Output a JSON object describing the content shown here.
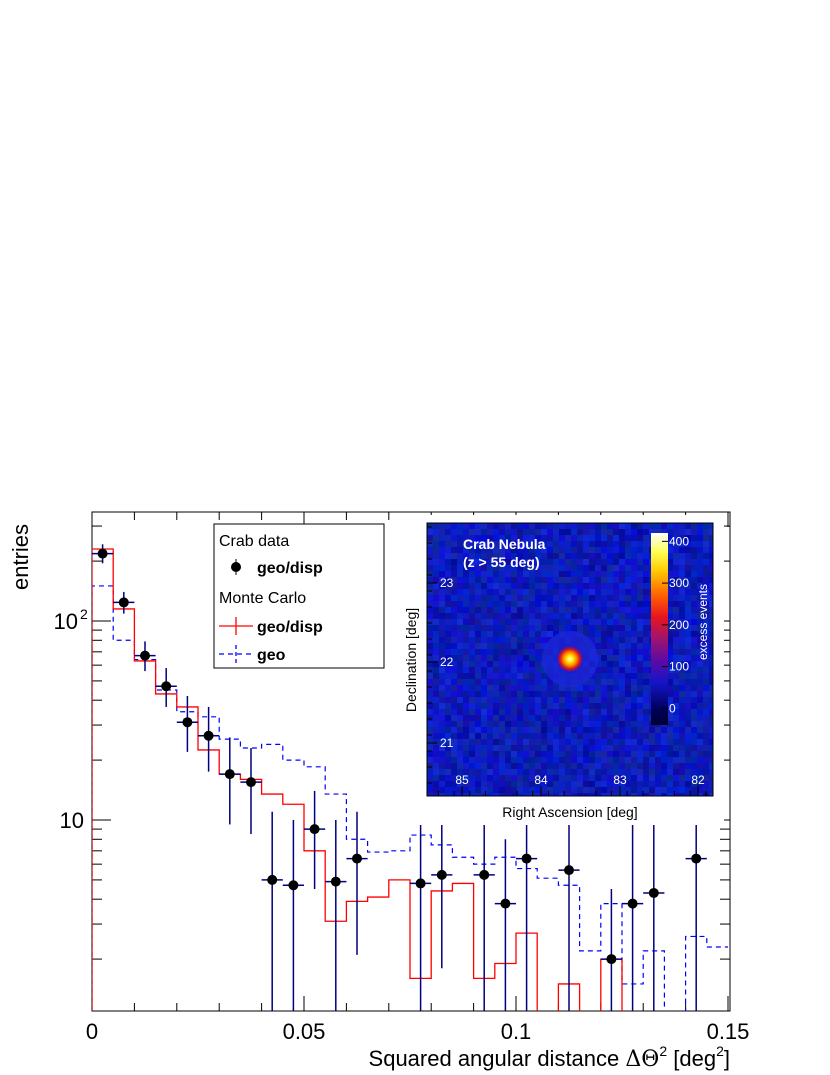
{
  "chart_data": [
    {
      "type": "histogram",
      "xlabel": "Squared angular distance",
      "xlabel_symbol": "ΔΘ",
      "xlabel_sup": "2",
      "xlabel_unit_pre": "[deg",
      "xlabel_unit_sup": "2",
      "xlabel_unit_post": "]",
      "ylabel": "entries",
      "xlim": [
        0,
        0.15
      ],
      "ylim": [
        1.08,
        350
      ],
      "yscale": "log",
      "x_ticks": [
        {
          "value": 0,
          "label": "0"
        },
        {
          "value": 0.05,
          "label": "0.05"
        },
        {
          "value": 0.1,
          "label": "0.1"
        },
        {
          "value": 0.15,
          "label": "0.15"
        }
      ],
      "y_ticks": [
        {
          "value": 10,
          "label": "10",
          "sup": ""
        },
        {
          "value": 100,
          "label": "10",
          "sup": "2"
        }
      ],
      "legend": {
        "placement": "top-center",
        "header_data": "Crab data",
        "header_mc": "Monte Carlo",
        "entries": [
          {
            "label": "geo/disp",
            "group": "data"
          },
          {
            "label": "geo/disp",
            "group": "mc"
          },
          {
            "label": "geo",
            "group": "mc"
          }
        ]
      },
      "bin_width": 0.005,
      "series": [
        {
          "name": "geo/disp",
          "group": "Crab data",
          "style": "points",
          "color": "#000000",
          "errcolor": "#000080",
          "points": [
            {
              "x": 0.0025,
              "y": 218,
              "lo": 195,
              "hi": 243
            },
            {
              "x": 0.0075,
              "y": 124,
              "lo": 109,
              "hi": 140
            },
            {
              "x": 0.0125,
              "y": 67,
              "lo": 56,
              "hi": 79
            },
            {
              "x": 0.0175,
              "y": 47,
              "lo": 37,
              "hi": 58
            },
            {
              "x": 0.0225,
              "y": 31,
              "lo": 22,
              "hi": 42
            },
            {
              "x": 0.0275,
              "y": 26.5,
              "lo": 17.5,
              "hi": 37
            },
            {
              "x": 0.0325,
              "y": 17,
              "lo": 9.5,
              "hi": 26
            },
            {
              "x": 0.0375,
              "y": 15.5,
              "lo": 8.5,
              "hi": 23
            },
            {
              "x": 0.0425,
              "y": 5,
              "lo": 1.0,
              "hi": 11
            },
            {
              "x": 0.0475,
              "y": 4.7,
              "lo": 1.0,
              "hi": 10
            },
            {
              "x": 0.0525,
              "y": 9,
              "lo": 4.5,
              "hi": 14
            },
            {
              "x": 0.0575,
              "y": 4.9,
              "lo": 1.0,
              "hi": 10
            },
            {
              "x": 0.0625,
              "y": 6.4,
              "lo": 2.1,
              "hi": 11
            },
            {
              "x": 0.0775,
              "y": 4.8,
              "lo": 1.0,
              "hi": 10
            },
            {
              "x": 0.0825,
              "y": 5.3,
              "lo": 1.8,
              "hi": 10
            },
            {
              "x": 0.0925,
              "y": 5.3,
              "lo": 1.0,
              "hi": 10
            },
            {
              "x": 0.0975,
              "y": 3.8,
              "lo": 1.0,
              "hi": 8
            },
            {
              "x": 0.1025,
              "y": 6.4,
              "lo": 1.0,
              "hi": 11
            },
            {
              "x": 0.1125,
              "y": 5.6,
              "lo": 1.0,
              "hi": 10
            },
            {
              "x": 0.1225,
              "y": 2.0,
              "lo": 1.0,
              "hi": 4.5
            },
            {
              "x": 0.1275,
              "y": 3.8,
              "lo": 1.0,
              "hi": 10
            },
            {
              "x": 0.1325,
              "y": 4.3,
              "lo": 1.0,
              "hi": 10
            },
            {
              "x": 0.1425,
              "y": 6.4,
              "lo": 1.0,
              "hi": 11
            }
          ]
        },
        {
          "name": "geo/disp",
          "group": "Monte Carlo",
          "style": "step",
          "color": "#ff0000",
          "values": [
            230,
            115,
            63,
            43,
            37,
            22.5,
            17,
            16,
            13.5,
            12,
            7,
            3.1,
            3.9,
            4.1,
            5,
            1.6,
            4.4,
            4.8,
            1.6,
            1.9,
            2.7,
            1,
            1.5,
            1,
            2,
            1,
            1,
            1,
            1,
            1
          ]
        },
        {
          "name": "geo",
          "group": "Monte Carlo",
          "style": "step-dashed",
          "color": "#0000ff",
          "values": [
            150,
            80,
            64,
            45,
            35,
            33,
            25.5,
            23,
            24,
            20,
            18.5,
            13.5,
            8,
            6.9,
            7,
            8.4,
            7.5,
            6.5,
            6,
            6.5,
            5.7,
            5.1,
            4.7,
            2.2,
            3.8,
            1.5,
            2.2,
            1,
            2.6,
            2.3
          ]
        }
      ]
    },
    {
      "type": "heatmap",
      "title": "Crab Nebula",
      "subtitle": "(z > 55 deg)",
      "xlabel": "Right Ascension  [deg]",
      "ylabel": "Declination [deg]",
      "colorbar_label": "excess events",
      "x_axis_reversed": true,
      "xlim": [
        85.7,
        81.8
      ],
      "ylim": [
        20.55,
        23.45
      ],
      "x_ticks": [
        "85",
        "84",
        "83",
        "82"
      ],
      "y_ticks": [
        "21",
        "22",
        "23"
      ],
      "colorbar_range": [
        -40,
        420
      ],
      "colorbar_ticks": [
        "0",
        "100",
        "200",
        "300",
        "400"
      ],
      "peak": {
        "ra": 83.63,
        "dec": 22.01,
        "value": 410
      }
    }
  ]
}
